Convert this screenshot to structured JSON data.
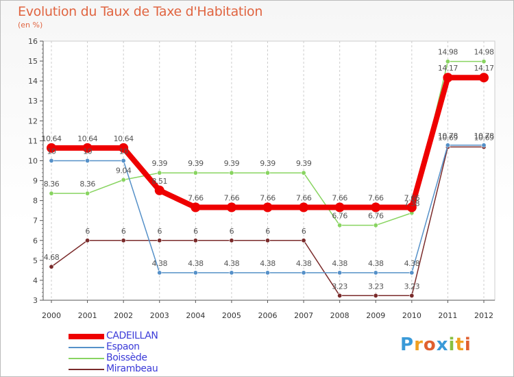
{
  "chart_data": {
    "type": "line",
    "title": "Evolution du Taux de Taxe d'Habitation",
    "subtitle": "(en %)",
    "x": [
      "2000",
      "2001",
      "2002",
      "2003",
      "2004",
      "2005",
      "2006",
      "2007",
      "2008",
      "2009",
      "2010",
      "2011",
      "2012"
    ],
    "ylim": [
      3,
      16
    ],
    "yticks": [
      "3",
      "4",
      "5",
      "6",
      "7",
      "8",
      "9",
      "10",
      "11",
      "12",
      "13",
      "14",
      "15",
      "16"
    ],
    "grid": "vertical dashed",
    "legend_position": "bottom-left",
    "series": [
      {
        "name": "CADEILLAN",
        "color": "#ee0000",
        "values": [
          10.64,
          10.64,
          10.64,
          8.51,
          7.66,
          7.66,
          7.66,
          7.66,
          7.66,
          7.66,
          7.66,
          14.17,
          14.17
        ],
        "labels": [
          "10.64",
          "10.64",
          "10.64",
          "8.51",
          "7.66",
          "7.66",
          "7.66",
          "7.66",
          "7.66",
          "7.66",
          "7.66",
          "14.17",
          "14.17"
        ]
      },
      {
        "name": "Espaon",
        "color": "#5590c8",
        "values": [
          10,
          10,
          10,
          4.38,
          4.38,
          4.38,
          4.38,
          4.38,
          4.38,
          4.38,
          4.38,
          10.78,
          10.78
        ],
        "labels": [
          "10",
          "10",
          "10",
          "4.38",
          "4.38",
          "4.38",
          "4.38",
          "4.38",
          "4.38",
          "4.38",
          "4.38",
          "10.78",
          "10.78"
        ]
      },
      {
        "name": "Boissède",
        "color": "#88d460",
        "values": [
          8.36,
          8.36,
          9.04,
          9.39,
          9.39,
          9.39,
          9.39,
          9.39,
          6.76,
          6.76,
          7.38,
          14.98,
          14.98
        ],
        "labels": [
          "8.36",
          "8.36",
          "9.04",
          "9.39",
          "9.39",
          "9.39",
          "9.39",
          "9.39",
          "6.76",
          "6.76",
          "7.38",
          "14.98",
          "14.98"
        ]
      },
      {
        "name": "Mirambeau",
        "color": "#7a2a2a",
        "values": [
          4.68,
          6,
          6,
          6,
          6,
          6,
          6,
          6,
          3.23,
          3.23,
          3.23,
          10.69,
          10.69
        ],
        "labels": [
          "4.68",
          "6",
          "6",
          "6",
          "6",
          "6",
          "6",
          "6",
          "3.23",
          "3.23",
          "3.23",
          "10.69",
          "10.69"
        ]
      }
    ]
  },
  "logo": {
    "text": "Proxiti",
    "letters": [
      "P",
      "r",
      "o",
      "x",
      "i",
      "t",
      "i"
    ],
    "colors": [
      "#3a9ad8",
      "#f0a020",
      "#e06030",
      "#3a9ad8",
      "#88c040",
      "#f0a020",
      "#e06030"
    ]
  }
}
